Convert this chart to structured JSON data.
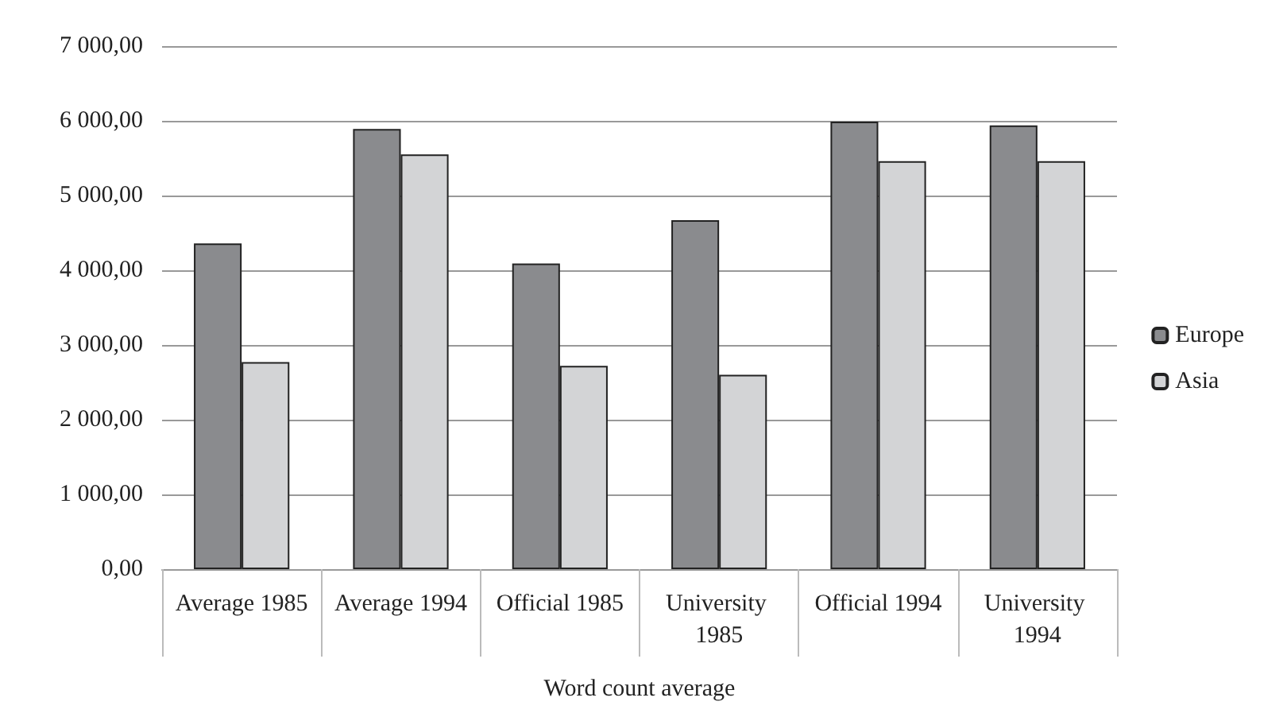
{
  "chart_data": {
    "type": "bar",
    "xlabel": "Word count average",
    "categories": [
      "Average 1985",
      "Average 1994",
      "Official 1985",
      "University 1985",
      "Official 1994",
      "University 1994"
    ],
    "series": [
      {
        "name": "Europe",
        "color": "#8a8b8e",
        "values": [
          4360,
          5890,
          4090,
          4670,
          5990,
          5940
        ]
      },
      {
        "name": "Asia",
        "color": "#d3d4d6",
        "values": [
          2770,
          5550,
          2720,
          2600,
          5460,
          5460
        ]
      }
    ],
    "ylim": [
      0,
      7000
    ],
    "yticks": [
      {
        "value": 0,
        "label": "0,00"
      },
      {
        "value": 1000,
        "label": "1 000,00"
      },
      {
        "value": 2000,
        "label": "2 000,00"
      },
      {
        "value": 3000,
        "label": "3 000,00"
      },
      {
        "value": 4000,
        "label": "4 000,00"
      },
      {
        "value": 5000,
        "label": "5 000,00"
      },
      {
        "value": 6000,
        "label": "6 000,00"
      },
      {
        "value": 7000,
        "label": "7 000,00"
      }
    ],
    "grid": "y",
    "legend": "right"
  }
}
